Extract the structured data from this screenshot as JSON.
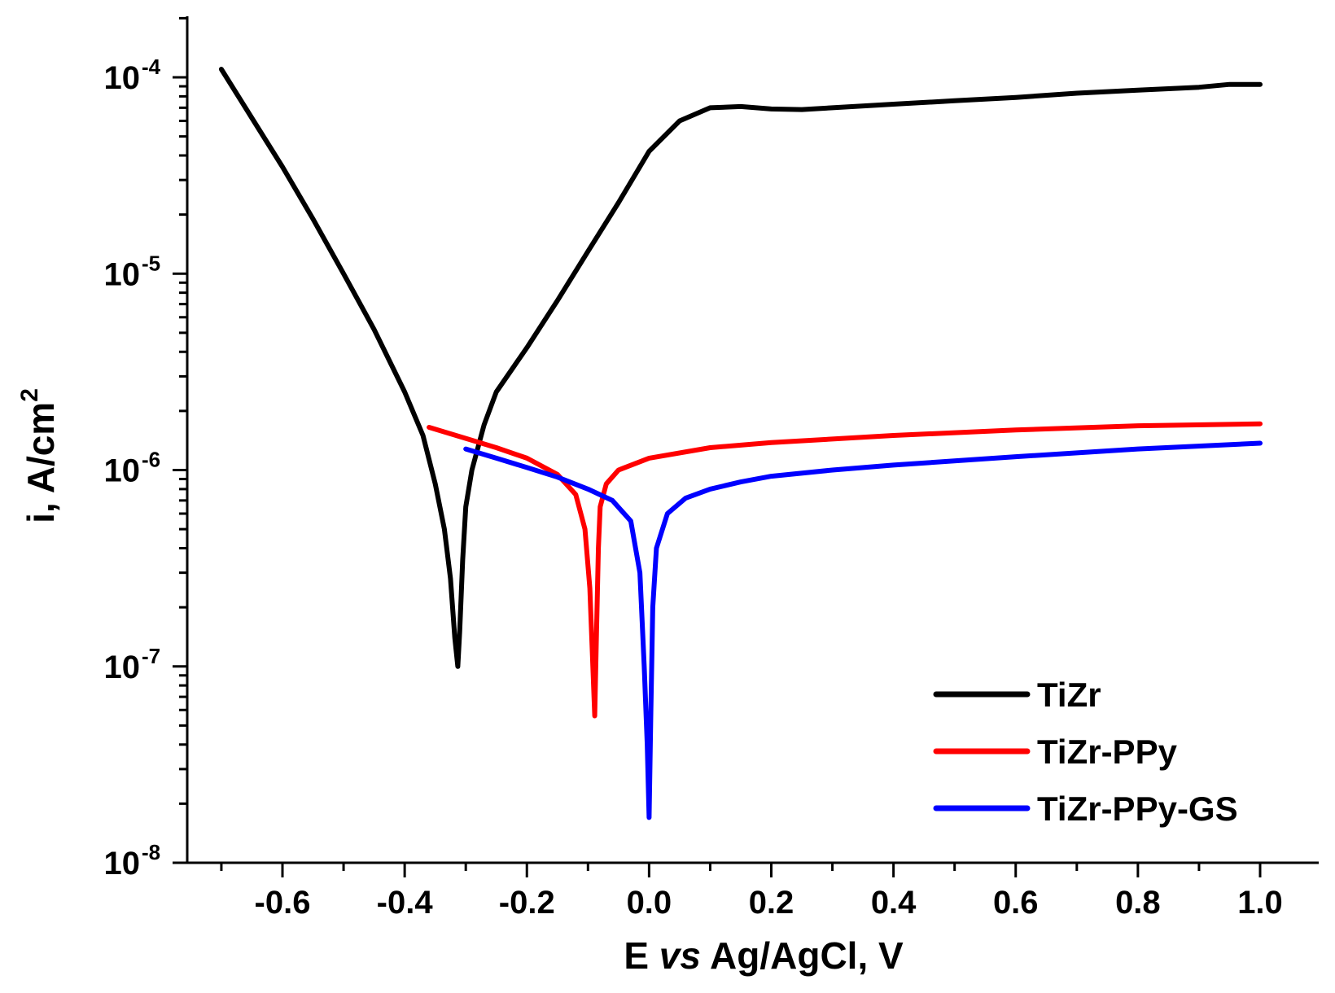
{
  "chart_data": {
    "type": "line",
    "title": "",
    "xlabel_parts": [
      "E ",
      "vs",
      " Ag/AgCl, V"
    ],
    "ylabel_parts": [
      "i, A/cm",
      "2"
    ],
    "x_range": [
      -0.77,
      1.1
    ],
    "y_range": [
      1e-08,
      0.0002
    ],
    "y_scale": "log",
    "x_ticks": [
      -0.6,
      -0.4,
      -0.2,
      0.0,
      0.2,
      0.4,
      0.6,
      0.8,
      1.0
    ],
    "x_tick_labels": [
      "-0.6",
      "-0.4",
      "-0.2",
      "0.0",
      "0.2",
      "0.4",
      "0.6",
      "0.8",
      "1.0"
    ],
    "y_ticks": [
      {
        "value": 0.0001,
        "base": "10",
        "exp": "-4"
      },
      {
        "value": 1e-05,
        "base": "10",
        "exp": "-5"
      },
      {
        "value": 1e-06,
        "base": "10",
        "exp": "-6"
      },
      {
        "value": 1e-07,
        "base": "10",
        "exp": "-7"
      },
      {
        "value": 1e-08,
        "base": "10",
        "exp": "-8"
      }
    ],
    "legend_position": "bottom-right",
    "series": [
      {
        "name": "TiZr",
        "color": "#000000",
        "points": [
          [
            -0.7,
            0.00011
          ],
          [
            -0.65,
            6.2e-05
          ],
          [
            -0.6,
            3.5e-05
          ],
          [
            -0.55,
            1.9e-05
          ],
          [
            -0.5,
            1e-05
          ],
          [
            -0.45,
            5.2e-06
          ],
          [
            -0.4,
            2.5e-06
          ],
          [
            -0.37,
            1.5e-06
          ],
          [
            -0.35,
            8.5e-07
          ],
          [
            -0.335,
            5e-07
          ],
          [
            -0.325,
            2.8e-07
          ],
          [
            -0.318,
            1.4e-07
          ],
          [
            -0.313,
            1e-07
          ],
          [
            -0.31,
            1.5e-07
          ],
          [
            -0.305,
            3.5e-07
          ],
          [
            -0.3,
            6.5e-07
          ],
          [
            -0.29,
            1e-06
          ],
          [
            -0.27,
            1.7e-06
          ],
          [
            -0.25,
            2.5e-06
          ],
          [
            -0.2,
            4.2e-06
          ],
          [
            -0.15,
            7.3e-06
          ],
          [
            -0.1,
            1.3e-05
          ],
          [
            -0.05,
            2.3e-05
          ],
          [
            0.0,
            4.2e-05
          ],
          [
            0.05,
            6e-05
          ],
          [
            0.1,
            7e-05
          ],
          [
            0.15,
            7.1e-05
          ],
          [
            0.2,
            6.9e-05
          ],
          [
            0.25,
            6.85e-05
          ],
          [
            0.3,
            7e-05
          ],
          [
            0.4,
            7.3e-05
          ],
          [
            0.5,
            7.6e-05
          ],
          [
            0.6,
            7.9e-05
          ],
          [
            0.7,
            8.3e-05
          ],
          [
            0.8,
            8.6e-05
          ],
          [
            0.9,
            8.9e-05
          ],
          [
            0.95,
            9.2e-05
          ],
          [
            1.0,
            9.2e-05
          ]
        ]
      },
      {
        "name": "TiZr-PPy",
        "color": "#ff0000",
        "points": [
          [
            -0.36,
            1.65e-06
          ],
          [
            -0.3,
            1.45e-06
          ],
          [
            -0.25,
            1.3e-06
          ],
          [
            -0.2,
            1.15e-06
          ],
          [
            -0.15,
            9.5e-07
          ],
          [
            -0.12,
            7.5e-07
          ],
          [
            -0.105,
            5e-07
          ],
          [
            -0.097,
            2.5e-07
          ],
          [
            -0.092,
            1e-07
          ],
          [
            -0.089,
            5.6e-08
          ],
          [
            -0.086,
            1.5e-07
          ],
          [
            -0.083,
            4e-07
          ],
          [
            -0.08,
            6.5e-07
          ],
          [
            -0.07,
            8.5e-07
          ],
          [
            -0.05,
            1e-06
          ],
          [
            0.0,
            1.15e-06
          ],
          [
            0.1,
            1.3e-06
          ],
          [
            0.2,
            1.38e-06
          ],
          [
            0.4,
            1.5e-06
          ],
          [
            0.6,
            1.6e-06
          ],
          [
            0.8,
            1.68e-06
          ],
          [
            1.0,
            1.72e-06
          ]
        ]
      },
      {
        "name": "TiZr-PPy-GS",
        "color": "#0000ff",
        "points": [
          [
            -0.3,
            1.28e-06
          ],
          [
            -0.25,
            1.15e-06
          ],
          [
            -0.2,
            1.03e-06
          ],
          [
            -0.15,
            9.2e-07
          ],
          [
            -0.1,
            8e-07
          ],
          [
            -0.06,
            7e-07
          ],
          [
            -0.03,
            5.5e-07
          ],
          [
            -0.015,
            3e-07
          ],
          [
            -0.008,
            1e-07
          ],
          [
            -0.003,
            4e-08
          ],
          [
            0.0,
            1.7e-08
          ],
          [
            0.003,
            6e-08
          ],
          [
            0.006,
            2e-07
          ],
          [
            0.012,
            4e-07
          ],
          [
            0.03,
            6e-07
          ],
          [
            0.06,
            7.2e-07
          ],
          [
            0.1,
            8e-07
          ],
          [
            0.15,
            8.7e-07
          ],
          [
            0.2,
            9.3e-07
          ],
          [
            0.3,
            1e-06
          ],
          [
            0.4,
            1.06e-06
          ],
          [
            0.6,
            1.17e-06
          ],
          [
            0.8,
            1.28e-06
          ],
          [
            1.0,
            1.37e-06
          ]
        ]
      }
    ]
  }
}
